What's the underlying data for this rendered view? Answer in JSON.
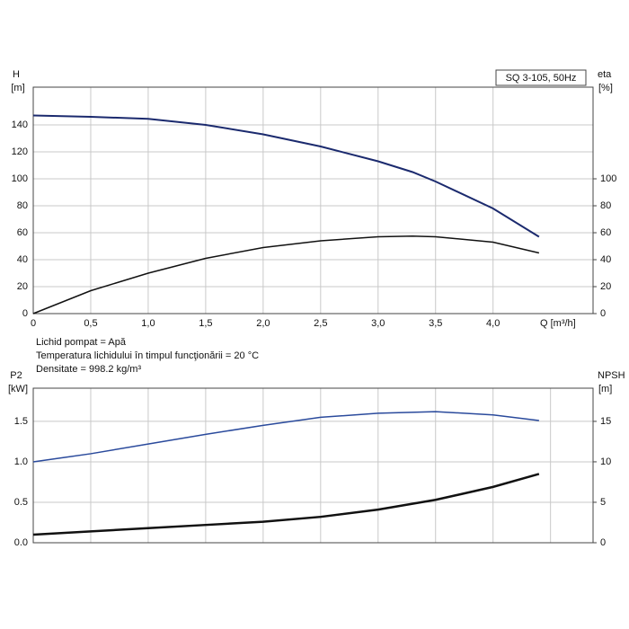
{
  "chart_data": [
    {
      "type": "line",
      "title": "SQ 3-105, 50Hz",
      "xlabel": "Q [m³/h]",
      "ylabel": "H",
      "yunit": "[m]",
      "y2label": "eta",
      "y2unit": "[%]",
      "annotations": [
        "Lichid pompat = Apă",
        "Temperatura lichidului în timpul funcţionării = 20 °C",
        "Densitate = 998.2 kg/m³"
      ],
      "xlim": [
        0,
        4.87
      ],
      "xticks": [
        0,
        {
          "value": 0.5,
          "label": "0,5"
        },
        {
          "value": 1.0,
          "label": "1,0"
        },
        {
          "value": 1.5,
          "label": "1,5"
        },
        {
          "value": 2.0,
          "label": "2,0"
        },
        {
          "value": 2.5,
          "label": "2,5"
        },
        {
          "value": 3.0,
          "label": "3,0"
        },
        {
          "value": 3.5,
          "label": "3,5"
        },
        {
          "value": 4.0,
          "label": "4,0"
        }
      ],
      "ylim": [
        0,
        168
      ],
      "yticks": [
        0,
        20,
        40,
        60,
        80,
        100,
        120,
        140
      ],
      "y2lim": [
        0,
        168
      ],
      "y2ticks": [
        0,
        20,
        40,
        60,
        80,
        100
      ],
      "grid": true,
      "xtick_labels": true,
      "x": [
        0,
        0.5,
        1.0,
        1.5,
        2.0,
        2.5,
        3.0,
        3.3,
        3.5,
        4.0,
        4.4
      ],
      "series": [
        {
          "name": "H",
          "color": "#1b2a6e",
          "width": 2,
          "values": [
            147,
            146,
            144.5,
            140,
            133,
            124,
            113,
            105,
            98,
            78,
            57
          ]
        },
        {
          "name": "eta",
          "color": "#111111",
          "width": 1.5,
          "axis": "y2",
          "values": [
            0,
            17,
            30,
            41,
            49,
            54,
            57,
            57.5,
            57,
            53,
            45
          ]
        }
      ]
    },
    {
      "type": "line",
      "ylabel": "P2",
      "yunit": "[kW]",
      "y2label": "NPSH",
      "y2unit": "[m]",
      "xlim": [
        0,
        4.87
      ],
      "xticks": [
        0,
        0.5,
        1.0,
        1.5,
        2.0,
        2.5,
        3.0,
        3.5,
        4.0,
        4.5
      ],
      "ylim": [
        0,
        1.91
      ],
      "yticks": [
        {
          "value": 0,
          "label": "0.0"
        },
        0.5,
        {
          "value": 1,
          "label": "1.0"
        },
        1.5
      ],
      "y2lim": [
        0,
        19.1
      ],
      "y2ticks": [
        0,
        5,
        10,
        15
      ],
      "grid": true,
      "xtick_labels": false,
      "x": [
        0,
        0.5,
        1.0,
        1.5,
        2.0,
        2.5,
        3.0,
        3.5,
        4.0,
        4.4
      ],
      "series": [
        {
          "name": "P2",
          "color": "#2a4a9c",
          "width": 1.5,
          "values": [
            1.0,
            1.1,
            1.22,
            1.34,
            1.45,
            1.55,
            1.6,
            1.62,
            1.58,
            1.51
          ]
        },
        {
          "name": "NPSH",
          "color": "#111111",
          "width": 2.5,
          "axis": "y2",
          "values": [
            1.0,
            1.4,
            1.8,
            2.2,
            2.6,
            3.2,
            4.1,
            5.3,
            6.9,
            8.5
          ]
        }
      ]
    }
  ]
}
